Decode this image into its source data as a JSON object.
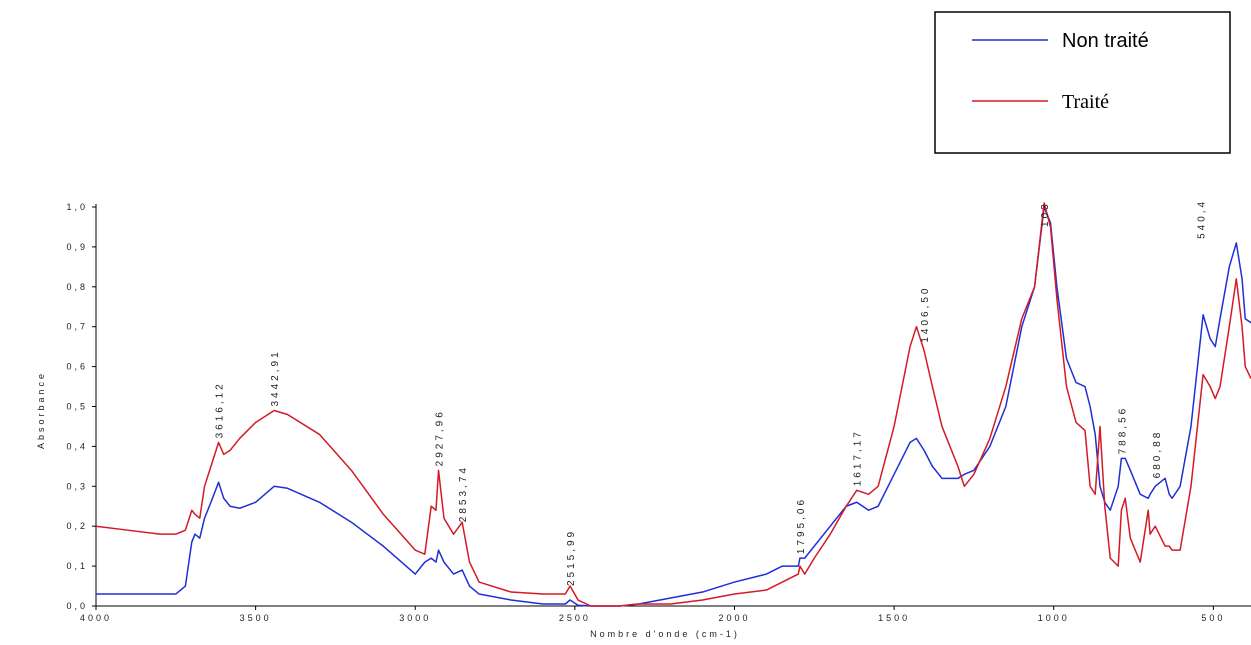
{
  "chart_data": {
    "type": "line",
    "x_label": "Nombre d'onde (cm-1)",
    "y_label": "Absorbance",
    "xlim": [
      4000,
      382
    ],
    "ylim": [
      0,
      1.0
    ],
    "xticks": [
      4000,
      3500,
      3000,
      2500,
      2000,
      1500,
      1000,
      500
    ],
    "yticks": [
      {
        "value": 0,
        "label": "0,0"
      },
      {
        "value": 0.1,
        "label": "0,1"
      },
      {
        "value": 0.2,
        "label": "0,2"
      },
      {
        "value": 0.3,
        "label": "0,3"
      },
      {
        "value": 0.4,
        "label": "0,4"
      },
      {
        "value": 0.5,
        "label": "0,5"
      },
      {
        "value": 0.6,
        "label": "0,6"
      },
      {
        "value": 0.7,
        "label": "0,7"
      },
      {
        "value": 0.8,
        "label": "0,8"
      },
      {
        "value": 0.9,
        "label": "0,9"
      },
      {
        "value": 1.0,
        "label": "1,0"
      }
    ],
    "x": [
      4000,
      3900,
      3800,
      3750,
      3720,
      3700,
      3690,
      3675,
      3660,
      3640,
      3616,
      3600,
      3580,
      3550,
      3500,
      3442,
      3400,
      3300,
      3200,
      3100,
      3000,
      2970,
      2950,
      2935,
      2927,
      2910,
      2880,
      2853,
      2830,
      2800,
      2700,
      2600,
      2530,
      2515,
      2490,
      2450,
      2400,
      2360,
      2300,
      2200,
      2100,
      2000,
      1900,
      1850,
      1800,
      1795,
      1780,
      1750,
      1700,
      1650,
      1617,
      1580,
      1550,
      1500,
      1450,
      1430,
      1406,
      1380,
      1350,
      1300,
      1280,
      1250,
      1200,
      1150,
      1100,
      1060,
      1030,
      1010,
      990,
      960,
      930,
      902,
      886,
      870,
      855,
      840,
      823,
      798,
      788,
      776,
      760,
      729,
      704,
      698,
      682,
      651,
      638,
      629,
      604,
      570,
      532,
      510,
      494,
      479,
      450,
      428,
      410,
      400,
      382
    ],
    "series": [
      {
        "name": "Non traité",
        "color": "#1f2fd6",
        "values": [
          0.03,
          0.03,
          0.03,
          0.03,
          0.05,
          0.16,
          0.18,
          0.17,
          0.22,
          0.26,
          0.31,
          0.27,
          0.25,
          0.245,
          0.26,
          0.3,
          0.295,
          0.26,
          0.21,
          0.15,
          0.08,
          0.11,
          0.12,
          0.11,
          0.14,
          0.11,
          0.08,
          0.09,
          0.05,
          0.03,
          0.015,
          0.005,
          0.005,
          0.015,
          0.002,
          0,
          0,
          0,
          0.005,
          0.02,
          0.035,
          0.06,
          0.08,
          0.1,
          0.1,
          0.12,
          0.12,
          0.15,
          0.2,
          0.25,
          0.26,
          0.24,
          0.25,
          0.33,
          0.41,
          0.42,
          0.39,
          0.35,
          0.32,
          0.32,
          0.33,
          0.34,
          0.4,
          0.5,
          0.7,
          0.8,
          1.0,
          0.96,
          0.8,
          0.62,
          0.56,
          0.55,
          0.5,
          0.43,
          0.3,
          0.26,
          0.24,
          0.3,
          0.37,
          0.37,
          0.34,
          0.28,
          0.27,
          0.28,
          0.3,
          0.32,
          0.28,
          0.27,
          0.3,
          0.45,
          0.73,
          0.67,
          0.65,
          0.72,
          0.85,
          0.91,
          0.82,
          0.72,
          0.71
        ]
      },
      {
        "name": "Traité",
        "color": "#d41a26",
        "values": [
          0.2,
          0.19,
          0.18,
          0.18,
          0.19,
          0.24,
          0.23,
          0.22,
          0.3,
          0.35,
          0.41,
          0.38,
          0.39,
          0.42,
          0.46,
          0.49,
          0.48,
          0.43,
          0.34,
          0.23,
          0.14,
          0.13,
          0.25,
          0.24,
          0.34,
          0.22,
          0.18,
          0.21,
          0.11,
          0.06,
          0.035,
          0.03,
          0.03,
          0.05,
          0.015,
          0,
          0,
          0,
          0.005,
          0.005,
          0.015,
          0.03,
          0.04,
          0.06,
          0.08,
          0.1,
          0.08,
          0.12,
          0.18,
          0.25,
          0.29,
          0.28,
          0.3,
          0.45,
          0.65,
          0.7,
          0.64,
          0.55,
          0.45,
          0.35,
          0.3,
          0.33,
          0.42,
          0.55,
          0.72,
          0.8,
          1.01,
          0.95,
          0.77,
          0.55,
          0.46,
          0.44,
          0.3,
          0.28,
          0.45,
          0.25,
          0.12,
          0.1,
          0.24,
          0.27,
          0.17,
          0.11,
          0.24,
          0.18,
          0.2,
          0.15,
          0.15,
          0.14,
          0.14,
          0.3,
          0.58,
          0.55,
          0.52,
          0.55,
          0.7,
          0.82,
          0.7,
          0.6,
          0.57
        ]
      }
    ],
    "annotations": [
      {
        "text": "3616,12",
        "x": 3616,
        "y": 0.42
      },
      {
        "text": "3442,91",
        "x": 3442,
        "y": 0.5
      },
      {
        "text": "2927,96",
        "x": 2927,
        "y": 0.35
      },
      {
        "text": "2853,74",
        "x": 2853,
        "y": 0.21
      },
      {
        "text": "2515,99",
        "x": 2515,
        "y": 0.05
      },
      {
        "text": "1795,06",
        "x": 1795,
        "y": 0.13
      },
      {
        "text": "1617,17",
        "x": 1617,
        "y": 0.3
      },
      {
        "text": "1406,50",
        "x": 1406,
        "y": 0.66
      },
      {
        "text": "103",
        "x": 1030,
        "y": 0.95
      },
      {
        "text": "788,56",
        "x": 788,
        "y": 0.38
      },
      {
        "text": "680,88",
        "x": 680,
        "y": 0.32
      },
      {
        "text": "540,4",
        "x": 540,
        "y": 0.92
      }
    ]
  }
}
